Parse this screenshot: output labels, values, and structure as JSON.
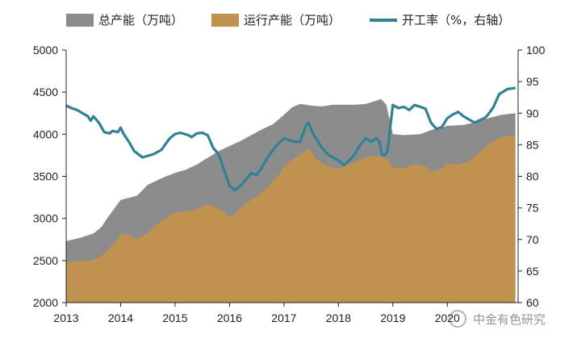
{
  "chart_data": {
    "type": "area",
    "legend": [
      {
        "label": "总产能（万吨）",
        "color": "#8c8c8c",
        "kind": "area"
      },
      {
        "label": "运行产能（万吨）",
        "color": "#c0914f",
        "kind": "area"
      },
      {
        "label": "开工率（%，右轴）",
        "color": "#2f8296",
        "kind": "line"
      }
    ],
    "x_tick_labels": [
      "2013",
      "2014",
      "2015",
      "2016",
      "2017",
      "2018",
      "2019",
      "2020"
    ],
    "xlim": [
      2013.0,
      2021.3
    ],
    "ylim_left": [
      2000,
      5000
    ],
    "ylim_right": [
      60,
      100
    ],
    "y_ticks_left": [
      "2000",
      "2500",
      "3000",
      "3500",
      "4000",
      "4500",
      "5000"
    ],
    "y_ticks_right": [
      "60",
      "65",
      "70",
      "75",
      "80",
      "85",
      "90",
      "95",
      "100"
    ],
    "series": [
      {
        "name": "总产能（万吨）",
        "axis": "left",
        "color": "#8c8c8c",
        "x": [
          2013.0,
          2013.25,
          2013.5,
          2013.65,
          2013.75,
          2014.0,
          2014.3,
          2014.5,
          2014.8,
          2015.0,
          2015.2,
          2015.4,
          2015.6,
          2015.8,
          2016.0,
          2016.2,
          2016.4,
          2016.6,
          2016.8,
          2017.0,
          2017.15,
          2017.3,
          2017.5,
          2017.7,
          2017.9,
          2018.0,
          2018.3,
          2018.5,
          2018.7,
          2018.78,
          2018.88,
          2019.0,
          2019.2,
          2019.5,
          2019.7,
          2019.9,
          2020.0,
          2020.3,
          2020.5,
          2020.8,
          2021.0,
          2021.25
        ],
        "values": [
          2730,
          2770,
          2820,
          2900,
          3000,
          3220,
          3270,
          3400,
          3490,
          3540,
          3580,
          3640,
          3720,
          3800,
          3860,
          3920,
          3990,
          4060,
          4120,
          4230,
          4320,
          4360,
          4340,
          4330,
          4350,
          4350,
          4350,
          4360,
          4400,
          4420,
          4350,
          4000,
          3990,
          4000,
          4050,
          4080,
          4100,
          4110,
          4140,
          4200,
          4230,
          4250
        ]
      },
      {
        "name": "运行产能（万吨）",
        "axis": "left",
        "color": "#c0914f",
        "x": [
          2013.0,
          2013.25,
          2013.5,
          2013.65,
          2013.8,
          2013.95,
          2014.0,
          2014.15,
          2014.3,
          2014.5,
          2014.7,
          2014.9,
          2015.0,
          2015.2,
          2015.4,
          2015.6,
          2015.8,
          2016.0,
          2016.15,
          2016.3,
          2016.5,
          2016.7,
          2016.9,
          2017.0,
          2017.2,
          2017.35,
          2017.45,
          2017.6,
          2017.8,
          2018.0,
          2018.2,
          2018.4,
          2018.6,
          2018.8,
          2018.9,
          2019.0,
          2019.2,
          2019.4,
          2019.6,
          2019.7,
          2019.9,
          2020.0,
          2020.2,
          2020.4,
          2020.6,
          2020.8,
          2021.0,
          2021.25
        ],
        "values": [
          2480,
          2490,
          2500,
          2560,
          2650,
          2750,
          2820,
          2800,
          2750,
          2830,
          2950,
          3030,
          3070,
          3080,
          3110,
          3170,
          3120,
          3020,
          3080,
          3180,
          3260,
          3370,
          3510,
          3620,
          3720,
          3780,
          3830,
          3700,
          3620,
          3590,
          3640,
          3700,
          3740,
          3730,
          3700,
          3600,
          3600,
          3640,
          3620,
          3550,
          3590,
          3650,
          3640,
          3680,
          3790,
          3900,
          3970,
          3990
        ]
      },
      {
        "name": "开工率（%，右轴）",
        "axis": "right",
        "color": "#2f8296",
        "x": [
          2013.0,
          2013.1,
          2013.2,
          2013.3,
          2013.4,
          2013.45,
          2013.5,
          2013.55,
          2013.6,
          2013.7,
          2013.8,
          2013.85,
          2013.95,
          2014.0,
          2014.05,
          2014.15,
          2014.25,
          2014.4,
          2014.6,
          2014.75,
          2014.9,
          2015.0,
          2015.1,
          2015.25,
          2015.3,
          2015.4,
          2015.5,
          2015.6,
          2015.7,
          2015.8,
          2015.9,
          2016.0,
          2016.1,
          2016.2,
          2016.3,
          2016.4,
          2016.5,
          2016.6,
          2016.7,
          2016.85,
          2017.0,
          2017.1,
          2017.2,
          2017.3,
          2017.4,
          2017.45,
          2017.55,
          2017.7,
          2017.8,
          2017.9,
          2018.0,
          2018.1,
          2018.2,
          2018.3,
          2018.4,
          2018.5,
          2018.6,
          2018.7,
          2018.75,
          2018.8,
          2018.85,
          2018.9,
          2019.0,
          2019.1,
          2019.2,
          2019.3,
          2019.4,
          2019.5,
          2019.6,
          2019.7,
          2019.8,
          2019.9,
          2020.0,
          2020.1,
          2020.2,
          2020.3,
          2020.5,
          2020.7,
          2020.75,
          2020.85,
          2020.95,
          2021.1,
          2021.25
        ],
        "values": [
          91.2,
          90.8,
          90.5,
          90.0,
          89.5,
          88.8,
          89.5,
          89.0,
          88.5,
          87.0,
          86.8,
          87.2,
          87.0,
          87.7,
          86.8,
          85.5,
          84.0,
          83.0,
          83.5,
          84.2,
          86.0,
          86.7,
          86.9,
          86.5,
          86.2,
          86.8,
          86.9,
          86.5,
          84.5,
          83.5,
          81.0,
          78.5,
          77.8,
          78.5,
          79.5,
          80.5,
          80.2,
          81.5,
          83.0,
          84.8,
          86.0,
          85.7,
          85.5,
          85.5,
          88.0,
          88.5,
          86.5,
          84.5,
          83.5,
          83.0,
          82.5,
          81.8,
          82.5,
          83.5,
          85.0,
          86.0,
          85.5,
          86.0,
          85.5,
          83.5,
          83.3,
          84.0,
          91.3,
          90.8,
          91.0,
          90.5,
          91.3,
          91.0,
          90.7,
          88.5,
          87.5,
          87.8,
          89.2,
          89.8,
          90.2,
          89.5,
          88.5,
          89.3,
          89.8,
          91.0,
          93.0,
          93.8,
          94.0
        ]
      }
    ]
  },
  "watermark": "中金有色研究"
}
